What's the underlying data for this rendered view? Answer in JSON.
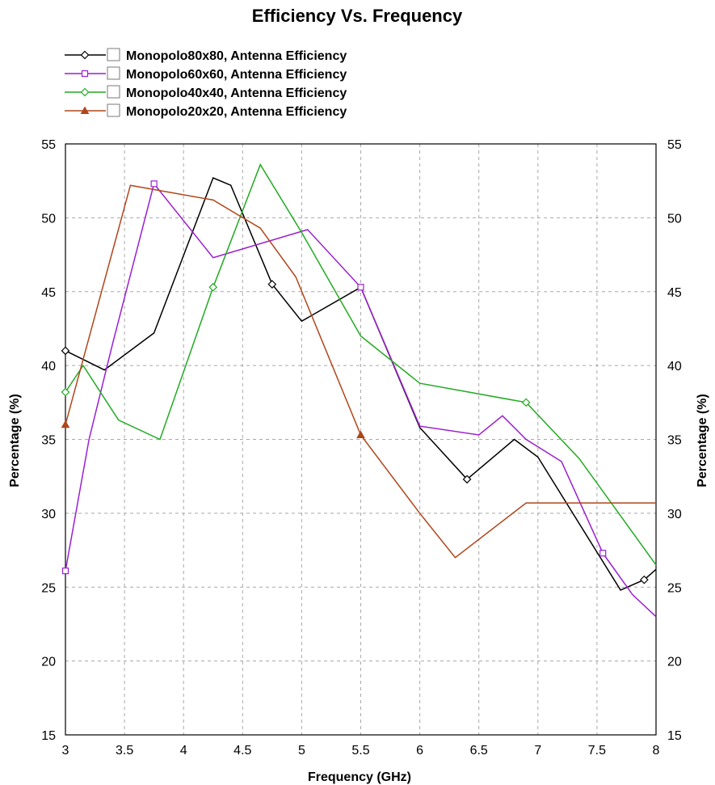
{
  "chart_data": {
    "type": "line",
    "title": "Efficiency Vs. Frequency",
    "xlabel": "Frequency (GHz)",
    "ylabel": "Percentage (%)",
    "y2label": "Percentage (%)",
    "xlim": [
      3,
      8
    ],
    "ylim": [
      15,
      55
    ],
    "xticks": [
      "3",
      "3.5",
      "4",
      "4.5",
      "5",
      "5.5",
      "6",
      "6.5",
      "7",
      "7.5",
      "8"
    ],
    "yticks": [
      "15",
      "20",
      "25",
      "30",
      "35",
      "40",
      "45",
      "50",
      "55"
    ],
    "grid": true,
    "legend_position": "top-left",
    "series": [
      {
        "name": "Monopolo80x80, Antenna Efficiency",
        "color": "#000000",
        "marker": "diamond",
        "x": [
          3.0,
          3.33,
          3.75,
          4.25,
          4.4,
          4.75,
          5.0,
          5.5,
          6.0,
          6.4,
          6.8,
          7.0,
          7.7,
          7.9,
          8.0
        ],
        "y": [
          41.0,
          39.7,
          42.2,
          52.7,
          52.2,
          45.5,
          43.0,
          45.3,
          35.8,
          32.3,
          35.0,
          33.8,
          24.8,
          25.5,
          26.2
        ]
      },
      {
        "name": "Monopolo60x60, Antenna Efficiency",
        "color": "#9b1fd1",
        "marker": "square",
        "x": [
          3.0,
          3.2,
          3.4,
          3.75,
          4.25,
          5.05,
          5.5,
          6.0,
          6.5,
          6.7,
          6.9,
          7.2,
          7.55,
          7.8,
          8.0
        ],
        "y": [
          26.1,
          35.0,
          41.5,
          52.3,
          47.3,
          49.2,
          45.3,
          35.9,
          35.3,
          36.6,
          35.0,
          33.5,
          27.3,
          24.5,
          23.0
        ]
      },
      {
        "name": "Monopolo40x40, Antenna Efficiency",
        "color": "#22aa22",
        "marker": "diamond",
        "x": [
          3.0,
          3.15,
          3.45,
          3.8,
          4.25,
          4.65,
          5.0,
          5.5,
          6.0,
          6.9,
          7.35,
          8.0
        ],
        "y": [
          38.2,
          40.0,
          36.3,
          35.0,
          45.3,
          53.6,
          49.0,
          42.0,
          38.8,
          37.5,
          33.7,
          26.5
        ]
      },
      {
        "name": "Monopolo20x20, Antenna Efficiency",
        "color": "#b0461a",
        "marker": "triangle",
        "x": [
          3.0,
          3.55,
          4.25,
          4.65,
          4.95,
          5.5,
          6.0,
          6.3,
          6.9,
          8.0
        ],
        "y": [
          36.0,
          52.2,
          51.2,
          49.3,
          46.0,
          35.3,
          30.0,
          27.0,
          30.7,
          30.7
        ]
      }
    ]
  }
}
